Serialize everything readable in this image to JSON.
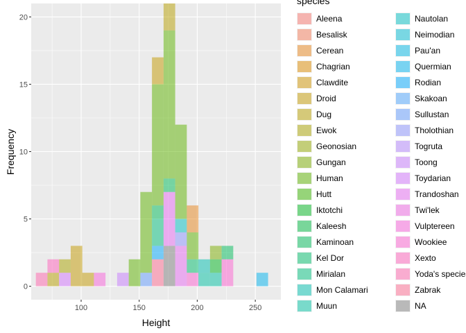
{
  "chart_data": {
    "type": "bar",
    "subtype": "stacked-histogram",
    "title": "",
    "xlabel": "Height",
    "ylabel": "Frequency",
    "xlim": [
      57,
      272
    ],
    "ylim": [
      -1,
      21
    ],
    "x_ticks": [
      100,
      150,
      200,
      250
    ],
    "y_ticks": [
      0,
      5,
      10,
      15,
      20
    ],
    "bin_width": 10,
    "bar_opacity": 0.5,
    "grid": true,
    "legend_title": "species",
    "legend_position": "right",
    "legend": [
      {
        "name": "Aleena",
        "color": "#F8766D"
      },
      {
        "name": "Besalisk",
        "color": "#F37B59"
      },
      {
        "name": "Cerean",
        "color": "#E7861B"
      },
      {
        "name": "Chagrian",
        "color": "#DE8C00"
      },
      {
        "name": "Clawdite",
        "color": "#CF9400"
      },
      {
        "name": "Droid",
        "color": "#C49A00"
      },
      {
        "name": "Dug",
        "color": "#B79F00"
      },
      {
        "name": "Ewok",
        "color": "#A9A400"
      },
      {
        "name": "Geonosian",
        "color": "#93AA00"
      },
      {
        "name": "Gungan",
        "color": "#7CAE00"
      },
      {
        "name": "Human",
        "color": "#5EB300"
      },
      {
        "name": "Hutt",
        "color": "#39B600"
      },
      {
        "name": "Iktotchi",
        "color": "#00B81F"
      },
      {
        "name": "Kaleesh",
        "color": "#00BA42"
      },
      {
        "name": "Kaminoan",
        "color": "#00BC59"
      },
      {
        "name": "Kel Dor",
        "color": "#00BE6C"
      },
      {
        "name": "Mirialan",
        "color": "#00BF7D"
      },
      {
        "name": "Mon Calamari",
        "color": "#00C0AF"
      },
      {
        "name": "Muun",
        "color": "#00C1A3"
      },
      {
        "name": "Nautolan",
        "color": "#00BFC4"
      },
      {
        "name": "Neimodian",
        "color": "#00BCD4"
      },
      {
        "name": "Pau'an",
        "color": "#00B8E5"
      },
      {
        "name": "Quermian",
        "color": "#00B4F0"
      },
      {
        "name": "Rodian",
        "color": "#00A9FF"
      },
      {
        "name": "Skakoan",
        "color": "#4EA6FF"
      },
      {
        "name": "Sullustan",
        "color": "#619CFF"
      },
      {
        "name": "Tholothian",
        "color": "#8B93FF"
      },
      {
        "name": "Togruta",
        "color": "#B385FF"
      },
      {
        "name": "Toong",
        "color": "#C77CFF"
      },
      {
        "name": "Toydarian",
        "color": "#D376FF"
      },
      {
        "name": "Trandoshan",
        "color": "#E76BF3"
      },
      {
        "name": "Twi'lek",
        "color": "#F066E3"
      },
      {
        "name": "Vulptereen",
        "color": "#FA62DB"
      },
      {
        "name": "Wookiee",
        "color": "#FD61D1"
      },
      {
        "name": "Xexto",
        "color": "#FF62BC"
      },
      {
        "name": "Yoda's species",
        "color": "#FF65AE"
      },
      {
        "name": "Zabrak",
        "color": "#FF6C91"
      },
      {
        "name": "NA",
        "color": "#7F7F7F"
      }
    ],
    "series": [
      {
        "name": "Yoda's species",
        "x": 66,
        "values": [
          1
        ]
      },
      {
        "name": "Dug",
        "x": 76,
        "values": [
          1
        ]
      },
      {
        "name": "Xexto",
        "x": 76,
        "values": [
          1
        ]
      },
      {
        "name": "Toydarian",
        "x": 86,
        "values": [
          1
        ]
      },
      {
        "name": "Ewok",
        "x": 86,
        "values": [
          1
        ]
      },
      {
        "name": "Droid",
        "x": 96,
        "values": [
          3
        ]
      },
      {
        "name": "Droid",
        "x": 106,
        "values": [
          1
        ]
      },
      {
        "name": "Vulptereen",
        "x": 116,
        "values": [
          1
        ]
      },
      {
        "name": "Toong",
        "x": 136,
        "values": [
          1
        ]
      },
      {
        "name": "Human",
        "x": 146,
        "values": [
          2
        ]
      },
      {
        "name": "Sullustan",
        "x": 156,
        "values": [
          1
        ]
      },
      {
        "name": "Human",
        "x": 156,
        "values": [
          6
        ]
      },
      {
        "name": "Zabrak",
        "x": 166,
        "values": [
          2
        ]
      },
      {
        "name": "Rodian",
        "x": 166,
        "values": [
          1
        ]
      },
      {
        "name": "Mirialan",
        "x": 166,
        "values": [
          2
        ]
      },
      {
        "name": "Kaminoan",
        "x": 166,
        "values": [
          1
        ]
      },
      {
        "name": "Human",
        "x": 166,
        "values": [
          9
        ]
      },
      {
        "name": "Droid",
        "x": 166,
        "values": [
          2
        ]
      },
      {
        "name": "NA",
        "x": 176,
        "values": [
          3
        ]
      },
      {
        "name": "Trandoshan",
        "x": 176,
        "values": [
          4
        ]
      },
      {
        "name": "Kaminoan",
        "x": 176,
        "values": [
          1
        ]
      },
      {
        "name": "Human",
        "x": 176,
        "values": [
          11
        ]
      },
      {
        "name": "Dug",
        "x": 176,
        "values": [
          2
        ]
      },
      {
        "name": "Trandoshan",
        "x": 186,
        "values": [
          3
        ]
      },
      {
        "name": "Tholothian",
        "x": 186,
        "values": [
          1
        ]
      },
      {
        "name": "Nautolan",
        "x": 186,
        "values": [
          1
        ]
      },
      {
        "name": "Human",
        "x": 186,
        "values": [
          7
        ]
      },
      {
        "name": "Wookiee",
        "x": 196,
        "values": [
          1
        ]
      },
      {
        "name": "Kel Dor",
        "x": 196,
        "values": [
          1
        ]
      },
      {
        "name": "Human",
        "x": 196,
        "values": [
          2
        ]
      },
      {
        "name": "Cerean",
        "x": 196,
        "values": [
          2
        ]
      },
      {
        "name": "Muun",
        "x": 206,
        "values": [
          1
        ]
      },
      {
        "name": "Mon Calamari",
        "x": 206,
        "values": [
          1
        ]
      },
      {
        "name": "Muun",
        "x": 216,
        "values": [
          1
        ]
      },
      {
        "name": "Iktotchi",
        "x": 216,
        "values": [
          1
        ]
      },
      {
        "name": "Gungan",
        "x": 216,
        "values": [
          1
        ]
      },
      {
        "name": "Wookiee",
        "x": 226,
        "values": [
          2
        ]
      },
      {
        "name": "Kaminoan",
        "x": 226,
        "values": [
          1
        ]
      },
      {
        "name": "Quermian",
        "x": 256,
        "values": [
          1
        ]
      }
    ]
  }
}
